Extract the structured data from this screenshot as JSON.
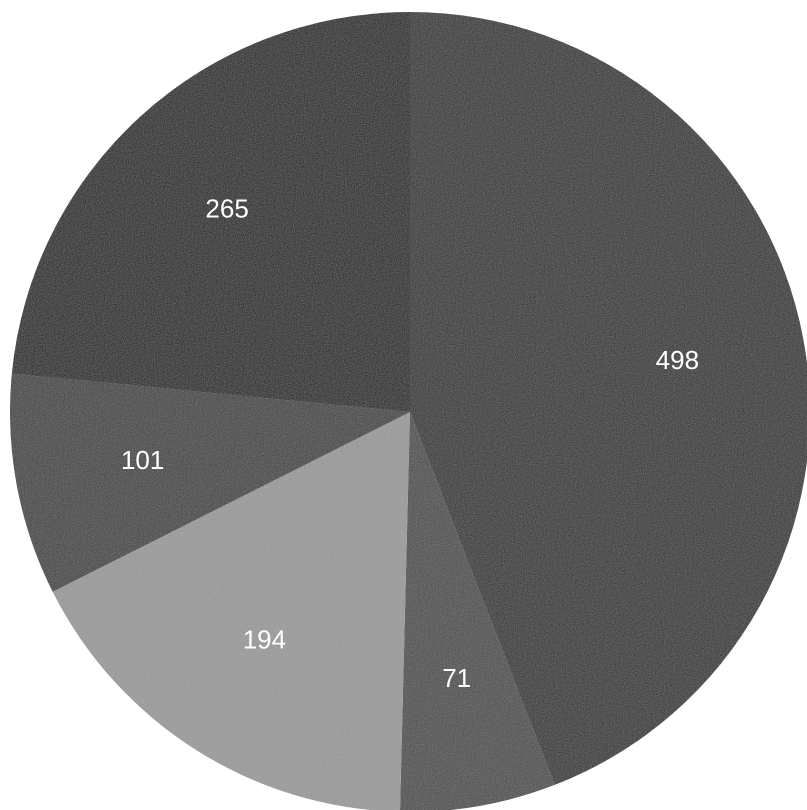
{
  "chart_data": {
    "type": "pie",
    "start_angle_deg": 0,
    "direction": "clockwise",
    "slices": [
      {
        "value": 498,
        "label": "498",
        "color": "#2b2b2b"
      },
      {
        "value": 71,
        "label": "71",
        "color": "#4a4a4a"
      },
      {
        "value": 194,
        "label": "194",
        "color": "#9a9a9a"
      },
      {
        "value": 101,
        "label": "101",
        "color": "#3c3c3c"
      },
      {
        "value": 265,
        "label": "265",
        "color": "#141414"
      }
    ],
    "label_color": "#ffffff",
    "legend": "none",
    "title": ""
  }
}
